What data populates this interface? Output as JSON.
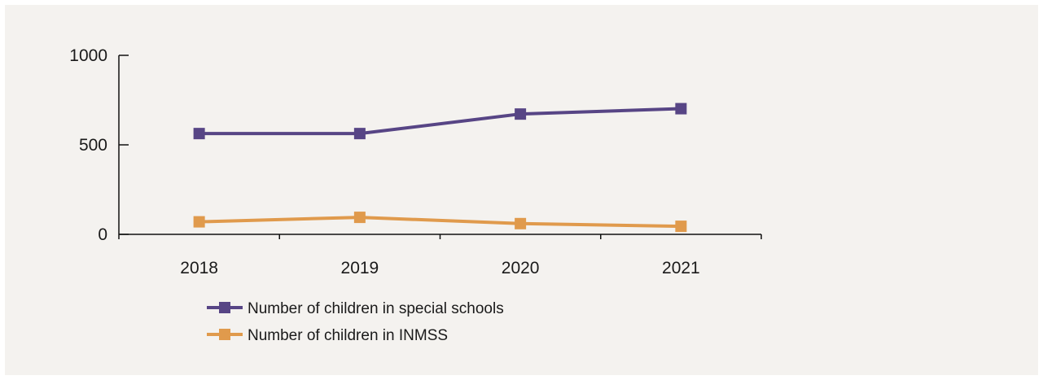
{
  "chart_data": {
    "type": "line",
    "categories": [
      "2018",
      "2019",
      "2020",
      "2021"
    ],
    "series": [
      {
        "name": "Number of children in special schools",
        "color": "#574585",
        "values": [
          563,
          563,
          672,
          702
        ]
      },
      {
        "name": "Number of children in INMSS",
        "color": "#e09a4c",
        "values": [
          70,
          95,
          60,
          45
        ]
      }
    ],
    "ylim": [
      0,
      1000
    ],
    "yticks": [
      0,
      500,
      1000
    ],
    "legend_position": "bottom-left",
    "grid": false
  }
}
